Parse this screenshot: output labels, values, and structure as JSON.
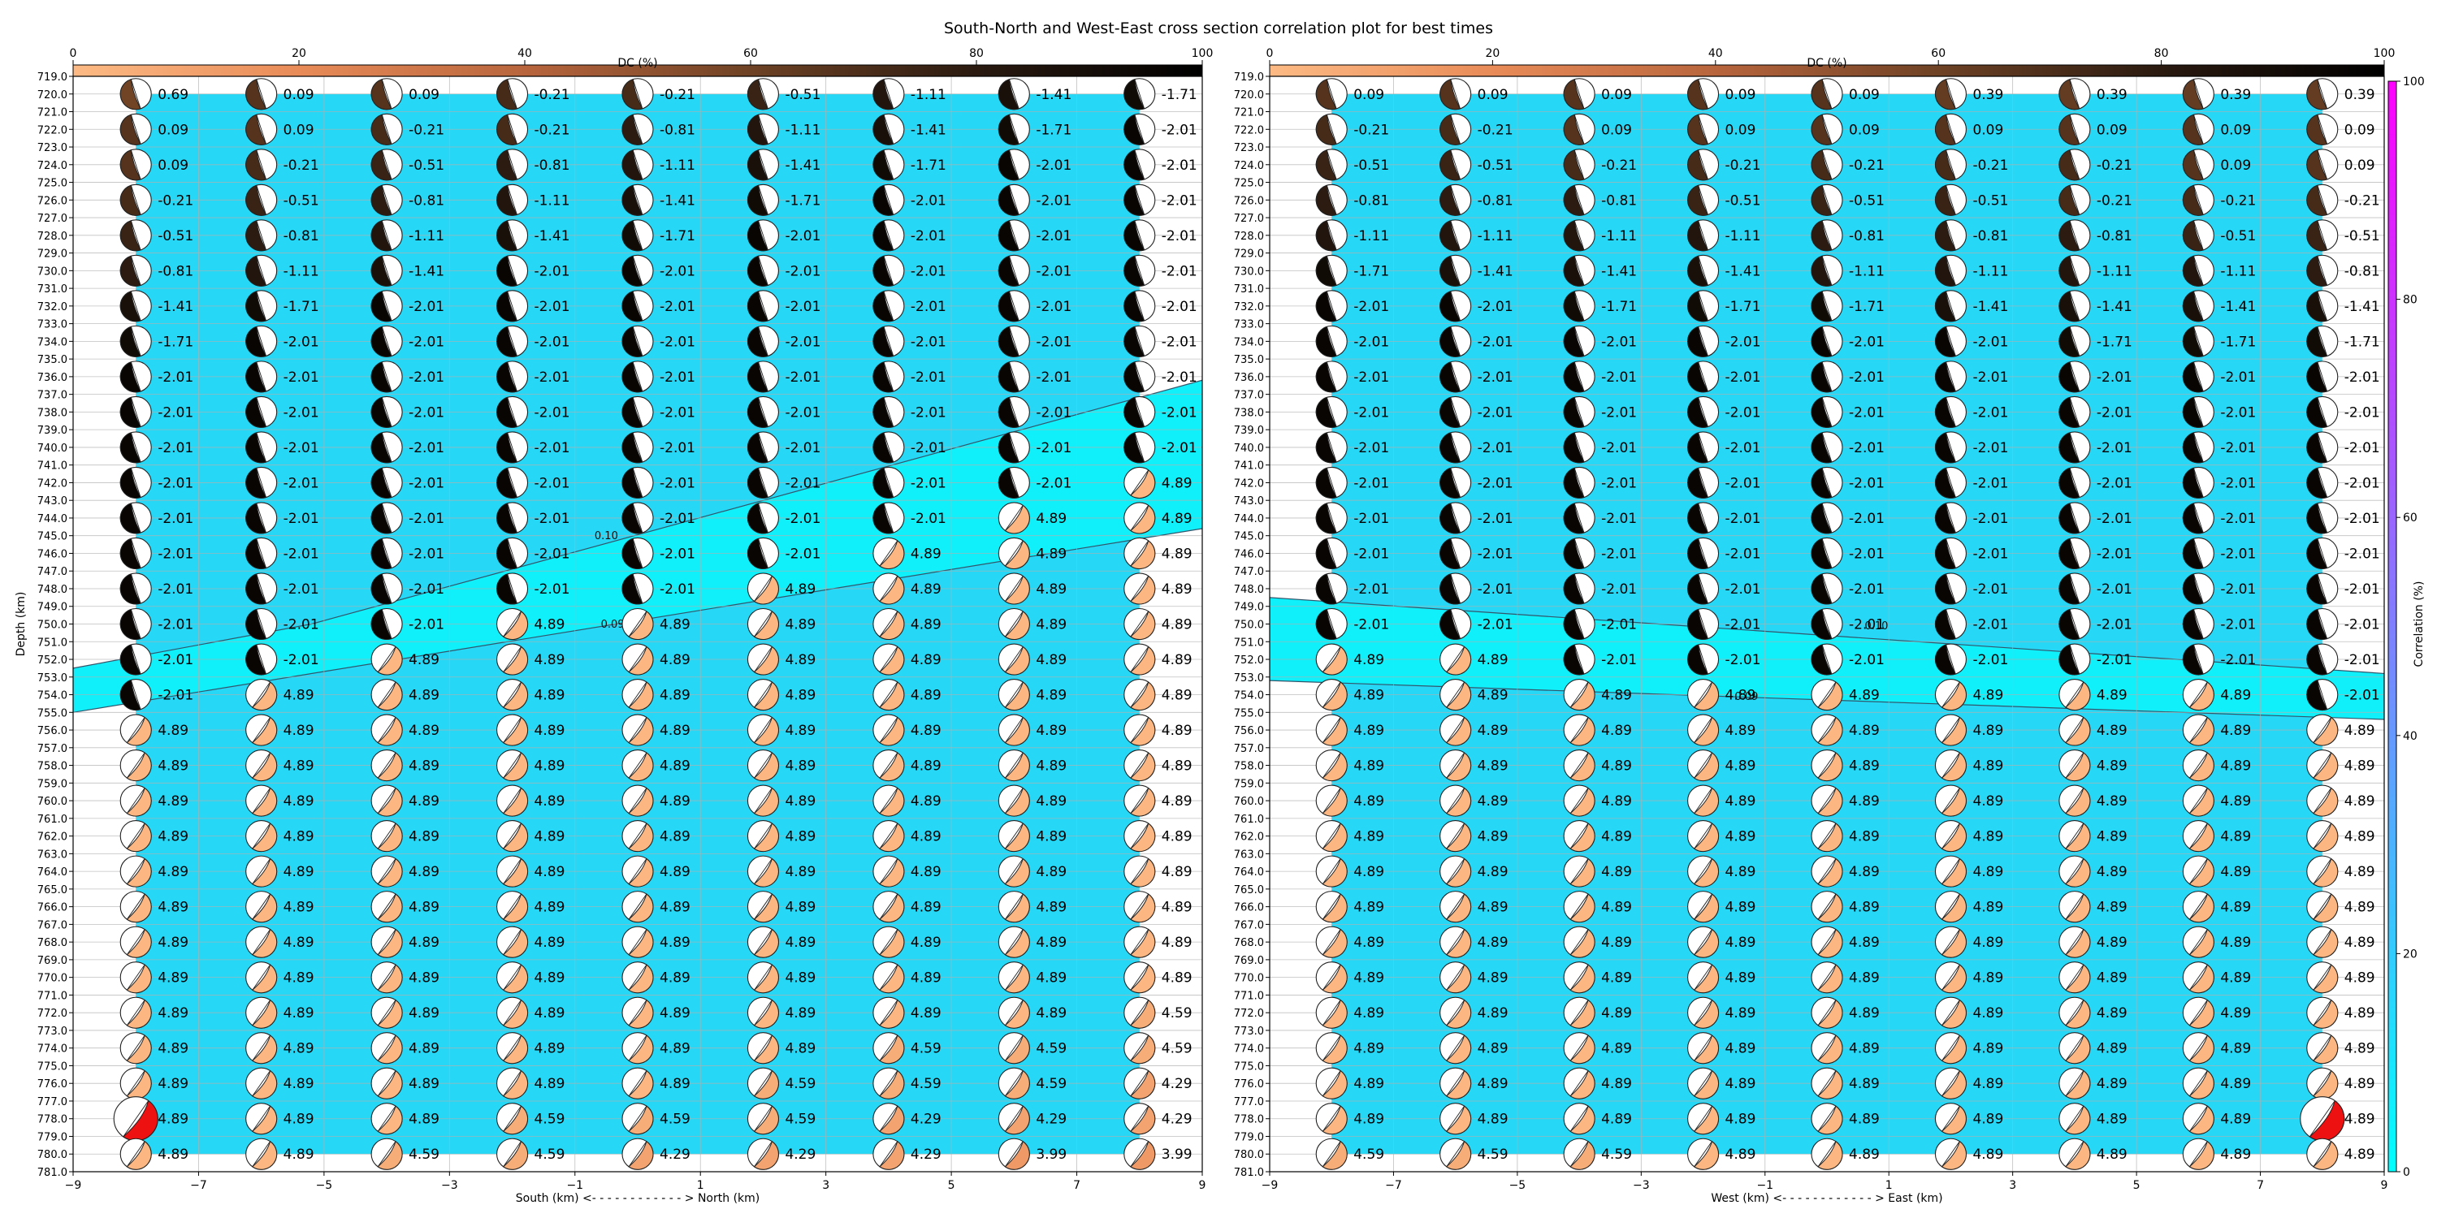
{
  "figure": {
    "title": "South-North and West-East cross section correlation plot for best times"
  },
  "colorbars": {
    "dc_label": "DC (%)",
    "dc_ticks": [
      0,
      20,
      40,
      60,
      80,
      100
    ],
    "dc_stops": [
      "#fdba84",
      "#e88b58",
      "#b8653d",
      "#6e4225",
      "#2a1a10",
      "#000000"
    ],
    "correlation_label": "Correlation (%)",
    "correlation_ticks": [
      0,
      20,
      40,
      60,
      80,
      100
    ],
    "correlation_stops": [
      "#00ffff",
      "#ff00ff"
    ]
  },
  "chart_data": [
    {
      "type": "contour-beachball",
      "name_panel": "South-North",
      "xlabel": "South (km) <- - - - - - - - - - - - > North (km)",
      "ylabel": "Depth (km)",
      "xlim": [
        -9,
        9
      ],
      "ylim": [
        781,
        719
      ],
      "x_ticks": [
        -9,
        -7,
        -5,
        -3,
        -1,
        1,
        3,
        5,
        7,
        9
      ],
      "y_ticks_from": 719,
      "y_ticks_to": 781,
      "y_tick_step": 1,
      "x_positions": [
        -8,
        -6,
        -4,
        -2,
        0,
        2,
        4,
        6,
        8
      ],
      "depths": [
        720,
        722,
        724,
        726,
        728,
        730,
        732,
        734,
        736,
        738,
        740,
        742,
        744,
        746,
        748,
        750,
        752,
        754,
        756,
        758,
        760,
        762,
        764,
        766,
        768,
        770,
        772,
        774,
        776,
        778,
        780
      ],
      "times": [
        [
          0.69,
          0.09,
          0.09,
          -0.21,
          -0.21,
          -0.51,
          -1.11,
          -1.41,
          -1.71
        ],
        [
          0.09,
          0.09,
          -0.21,
          -0.21,
          -0.81,
          -1.11,
          -1.41,
          -1.71,
          -2.01
        ],
        [
          0.09,
          -0.21,
          -0.51,
          -0.81,
          -1.11,
          -1.41,
          -1.71,
          -2.01,
          -2.01
        ],
        [
          -0.21,
          -0.51,
          -0.81,
          -1.11,
          -1.41,
          -1.71,
          -2.01,
          -2.01,
          -2.01
        ],
        [
          -0.51,
          -0.81,
          -1.11,
          -1.41,
          -1.71,
          -2.01,
          -2.01,
          -2.01,
          -2.01
        ],
        [
          -0.81,
          -1.11,
          -1.41,
          -2.01,
          -2.01,
          -2.01,
          -2.01,
          -2.01,
          -2.01
        ],
        [
          -1.41,
          -1.71,
          -2.01,
          -2.01,
          -2.01,
          -2.01,
          -2.01,
          -2.01,
          -2.01
        ],
        [
          -1.71,
          -2.01,
          -2.01,
          -2.01,
          -2.01,
          -2.01,
          -2.01,
          -2.01,
          -2.01
        ],
        [
          -2.01,
          -2.01,
          -2.01,
          -2.01,
          -2.01,
          -2.01,
          -2.01,
          -2.01,
          -2.01
        ],
        [
          -2.01,
          -2.01,
          -2.01,
          -2.01,
          -2.01,
          -2.01,
          -2.01,
          -2.01,
          -2.01
        ],
        [
          -2.01,
          -2.01,
          -2.01,
          -2.01,
          -2.01,
          -2.01,
          -2.01,
          -2.01,
          -2.01
        ],
        [
          -2.01,
          -2.01,
          -2.01,
          -2.01,
          -2.01,
          -2.01,
          -2.01,
          -2.01,
          4.89
        ],
        [
          -2.01,
          -2.01,
          -2.01,
          -2.01,
          -2.01,
          -2.01,
          -2.01,
          4.89,
          4.89
        ],
        [
          -2.01,
          -2.01,
          -2.01,
          -2.01,
          -2.01,
          -2.01,
          4.89,
          4.89,
          4.89
        ],
        [
          -2.01,
          -2.01,
          -2.01,
          -2.01,
          -2.01,
          4.89,
          4.89,
          4.89,
          4.89
        ],
        [
          -2.01,
          -2.01,
          -2.01,
          4.89,
          4.89,
          4.89,
          4.89,
          4.89,
          4.89
        ],
        [
          -2.01,
          -2.01,
          4.89,
          4.89,
          4.89,
          4.89,
          4.89,
          4.89,
          4.89
        ],
        [
          -2.01,
          4.89,
          4.89,
          4.89,
          4.89,
          4.89,
          4.89,
          4.89,
          4.89
        ],
        [
          4.89,
          4.89,
          4.89,
          4.89,
          4.89,
          4.89,
          4.89,
          4.89,
          4.89
        ],
        [
          4.89,
          4.89,
          4.89,
          4.89,
          4.89,
          4.89,
          4.89,
          4.89,
          4.89
        ],
        [
          4.89,
          4.89,
          4.89,
          4.89,
          4.89,
          4.89,
          4.89,
          4.89,
          4.89
        ],
        [
          4.89,
          4.89,
          4.89,
          4.89,
          4.89,
          4.89,
          4.89,
          4.89,
          4.89
        ],
        [
          4.89,
          4.89,
          4.89,
          4.89,
          4.89,
          4.89,
          4.89,
          4.89,
          4.89
        ],
        [
          4.89,
          4.89,
          4.89,
          4.89,
          4.89,
          4.89,
          4.89,
          4.89,
          4.89
        ],
        [
          4.89,
          4.89,
          4.89,
          4.89,
          4.89,
          4.89,
          4.89,
          4.89,
          4.89
        ],
        [
          4.89,
          4.89,
          4.89,
          4.89,
          4.89,
          4.89,
          4.89,
          4.89,
          4.89
        ],
        [
          4.89,
          4.89,
          4.89,
          4.89,
          4.89,
          4.89,
          4.89,
          4.89,
          4.59
        ],
        [
          4.89,
          4.89,
          4.89,
          4.89,
          4.89,
          4.89,
          4.59,
          4.59,
          4.59
        ],
        [
          4.89,
          4.89,
          4.89,
          4.89,
          4.89,
          4.59,
          4.59,
          4.59,
          4.29
        ],
        [
          4.89,
          4.89,
          4.89,
          4.59,
          4.59,
          4.59,
          4.29,
          4.29,
          4.29
        ],
        [
          4.89,
          4.89,
          4.59,
          4.59,
          4.29,
          4.29,
          4.29,
          3.99,
          3.99
        ]
      ],
      "best": {
        "x": -8,
        "depth": 778
      },
      "contour_labels": [
        {
          "text": "0.10",
          "x": -0.5,
          "depth": 745.2
        },
        {
          "text": "0.09",
          "x": -0.4,
          "depth": 750.2
        }
      ],
      "band_upper": [
        [
          -9,
          752.5
        ],
        [
          -5.2,
          750
        ],
        [
          9,
          736.2
        ]
      ],
      "band_lower": [
        [
          -9,
          755
        ],
        [
          9,
          744.6
        ]
      ]
    },
    {
      "type": "contour-beachball",
      "name_panel": "West-East",
      "xlabel": "West (km) <- - - - - - - - - - - - > East (km)",
      "ylabel": "",
      "xlim": [
        -9,
        9
      ],
      "ylim": [
        781,
        719
      ],
      "x_ticks": [
        -9,
        -7,
        -5,
        -3,
        -1,
        1,
        3,
        5,
        7,
        9
      ],
      "y_ticks_from": 719,
      "y_ticks_to": 781,
      "y_tick_step": 1,
      "x_positions": [
        -8,
        -6,
        -4,
        -2,
        0,
        2,
        4,
        6,
        8
      ],
      "depths": [
        720,
        722,
        724,
        726,
        728,
        730,
        732,
        734,
        736,
        738,
        740,
        742,
        744,
        746,
        748,
        750,
        752,
        754,
        756,
        758,
        760,
        762,
        764,
        766,
        768,
        770,
        772,
        774,
        776,
        778,
        780
      ],
      "times": [
        [
          0.09,
          0.09,
          0.09,
          0.09,
          0.09,
          0.39,
          0.39,
          0.39,
          0.39
        ],
        [
          -0.21,
          -0.21,
          0.09,
          0.09,
          0.09,
          0.09,
          0.09,
          0.09,
          0.09
        ],
        [
          -0.51,
          -0.51,
          -0.21,
          -0.21,
          -0.21,
          -0.21,
          -0.21,
          0.09,
          0.09
        ],
        [
          -0.81,
          -0.81,
          -0.81,
          -0.51,
          -0.51,
          -0.51,
          -0.21,
          -0.21,
          -0.21
        ],
        [
          -1.11,
          -1.11,
          -1.11,
          -1.11,
          -0.81,
          -0.81,
          -0.81,
          -0.51,
          -0.51
        ],
        [
          -1.71,
          -1.41,
          -1.41,
          -1.41,
          -1.11,
          -1.11,
          -1.11,
          -1.11,
          -0.81
        ],
        [
          -2.01,
          -2.01,
          -1.71,
          -1.71,
          -1.71,
          -1.41,
          -1.41,
          -1.41,
          -1.41
        ],
        [
          -2.01,
          -2.01,
          -2.01,
          -2.01,
          -2.01,
          -2.01,
          -1.71,
          -1.71,
          -1.71
        ],
        [
          -2.01,
          -2.01,
          -2.01,
          -2.01,
          -2.01,
          -2.01,
          -2.01,
          -2.01,
          -2.01
        ],
        [
          -2.01,
          -2.01,
          -2.01,
          -2.01,
          -2.01,
          -2.01,
          -2.01,
          -2.01,
          -2.01
        ],
        [
          -2.01,
          -2.01,
          -2.01,
          -2.01,
          -2.01,
          -2.01,
          -2.01,
          -2.01,
          -2.01
        ],
        [
          -2.01,
          -2.01,
          -2.01,
          -2.01,
          -2.01,
          -2.01,
          -2.01,
          -2.01,
          -2.01
        ],
        [
          -2.01,
          -2.01,
          -2.01,
          -2.01,
          -2.01,
          -2.01,
          -2.01,
          -2.01,
          -2.01
        ],
        [
          -2.01,
          -2.01,
          -2.01,
          -2.01,
          -2.01,
          -2.01,
          -2.01,
          -2.01,
          -2.01
        ],
        [
          -2.01,
          -2.01,
          -2.01,
          -2.01,
          -2.01,
          -2.01,
          -2.01,
          -2.01,
          -2.01
        ],
        [
          -2.01,
          -2.01,
          -2.01,
          -2.01,
          -2.01,
          -2.01,
          -2.01,
          -2.01,
          -2.01
        ],
        [
          4.89,
          4.89,
          -2.01,
          -2.01,
          -2.01,
          -2.01,
          -2.01,
          -2.01,
          -2.01
        ],
        [
          4.89,
          4.89,
          4.89,
          4.89,
          4.89,
          4.89,
          4.89,
          4.89,
          -2.01
        ],
        [
          4.89,
          4.89,
          4.89,
          4.89,
          4.89,
          4.89,
          4.89,
          4.89,
          4.89
        ],
        [
          4.89,
          4.89,
          4.89,
          4.89,
          4.89,
          4.89,
          4.89,
          4.89,
          4.89
        ],
        [
          4.89,
          4.89,
          4.89,
          4.89,
          4.89,
          4.89,
          4.89,
          4.89,
          4.89
        ],
        [
          4.89,
          4.89,
          4.89,
          4.89,
          4.89,
          4.89,
          4.89,
          4.89,
          4.89
        ],
        [
          4.89,
          4.89,
          4.89,
          4.89,
          4.89,
          4.89,
          4.89,
          4.89,
          4.89
        ],
        [
          4.89,
          4.89,
          4.89,
          4.89,
          4.89,
          4.89,
          4.89,
          4.89,
          4.89
        ],
        [
          4.89,
          4.89,
          4.89,
          4.89,
          4.89,
          4.89,
          4.89,
          4.89,
          4.89
        ],
        [
          4.89,
          4.89,
          4.89,
          4.89,
          4.89,
          4.89,
          4.89,
          4.89,
          4.89
        ],
        [
          4.89,
          4.89,
          4.89,
          4.89,
          4.89,
          4.89,
          4.89,
          4.89,
          4.89
        ],
        [
          4.89,
          4.89,
          4.89,
          4.89,
          4.89,
          4.89,
          4.89,
          4.89,
          4.89
        ],
        [
          4.89,
          4.89,
          4.89,
          4.89,
          4.89,
          4.89,
          4.89,
          4.89,
          4.89
        ],
        [
          4.89,
          4.89,
          4.89,
          4.89,
          4.89,
          4.89,
          4.89,
          4.89,
          4.89
        ],
        [
          4.59,
          4.59,
          4.59,
          4.89,
          4.89,
          4.89,
          4.89,
          4.89,
          4.89
        ]
      ],
      "best": {
        "x": 8,
        "depth": 778
      },
      "contour_labels": [
        {
          "text": "0.10",
          "x": 0.8,
          "depth": 750.3
        },
        {
          "text": "0.09",
          "x": -1.3,
          "depth": 754.3
        }
      ],
      "band_upper": [
        [
          -9,
          748.5
        ],
        [
          9,
          752.8
        ]
      ],
      "band_lower": [
        [
          -9,
          753.2
        ],
        [
          9,
          755.4
        ]
      ]
    }
  ]
}
